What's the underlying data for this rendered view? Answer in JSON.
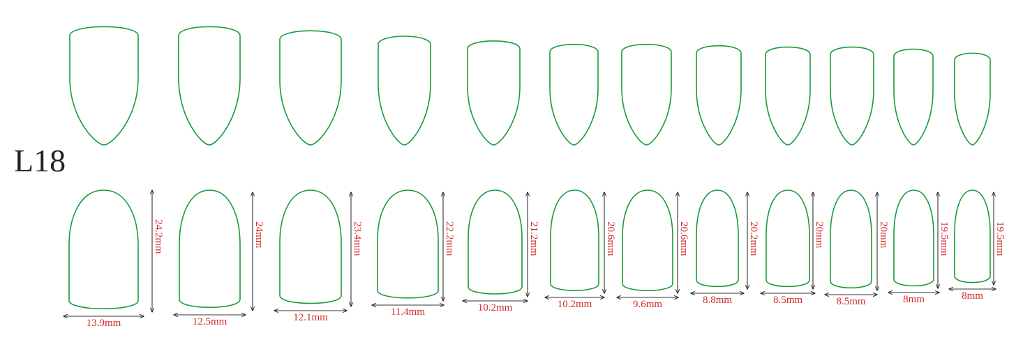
{
  "size_label": "L18",
  "colors": {
    "outline": "#1a9a3a",
    "dimension_text": "#d42a2a",
    "dimension_line": "#333333"
  },
  "nails": [
    {
      "width": "13.9mm",
      "length": "24.2mm"
    },
    {
      "width": "12.5mm",
      "length": "24mm"
    },
    {
      "width": "12.1mm",
      "length": "23.4mm"
    },
    {
      "width": "11.4mm",
      "length": "22.2mm"
    },
    {
      "width": "10.2mm",
      "length": "21.2mm"
    },
    {
      "width": "10.2mm",
      "length": "20.6mm"
    },
    {
      "width": "9.6mm",
      "length": "20.6mm"
    },
    {
      "width": "8.8mm",
      "length": "20.2mm"
    },
    {
      "width": "8.5mm",
      "length": "20mm"
    },
    {
      "width": "8.5mm",
      "length": "20mm"
    },
    {
      "width": "8mm",
      "length": "19.5mm"
    },
    {
      "width": "8mm",
      "length": "19.5mm"
    }
  ]
}
